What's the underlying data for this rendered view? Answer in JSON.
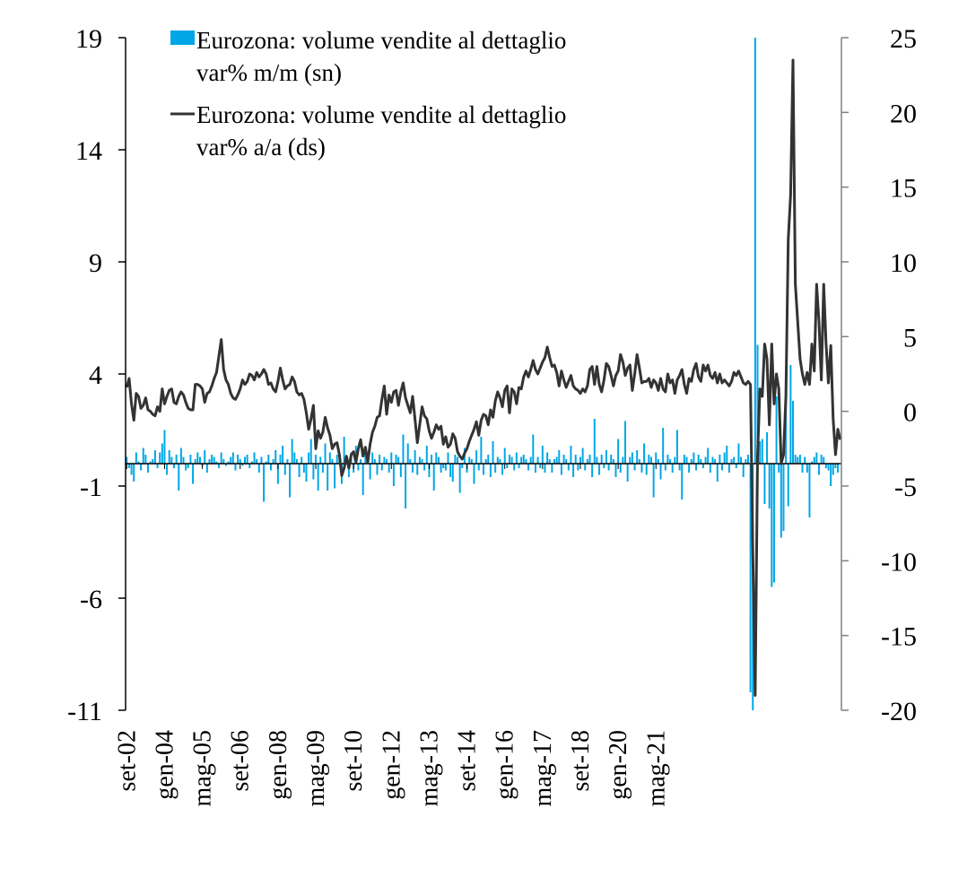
{
  "chart_data": {
    "type": "bar+line",
    "series": [
      {
        "name": "Eurozona: volume vendite al dettaglio var% m/m (sn)",
        "kind": "bar",
        "axis": "left",
        "color": "#00A6E6",
        "values": [
          0.3,
          -0.2,
          -0.5,
          -0.8,
          0.5,
          0.1,
          -0.3,
          0.7,
          0.4,
          -0.4,
          0.1,
          0.2,
          0.6,
          -0.2,
          0.5,
          0.9,
          1.5,
          -0.5,
          0.6,
          0.3,
          -0.2,
          0.4,
          -1.2,
          0.7,
          0.3,
          -0.3,
          -0.2,
          0.4,
          -0.9,
          0.2,
          0.5,
          0.3,
          -0.1,
          0.6,
          -0.4,
          0.2,
          0.4,
          0.3,
          0.1,
          -0.2,
          0.5,
          0.2,
          -0.1,
          0.1,
          0.3,
          0.5,
          -0.3,
          0.4,
          0.2,
          -0.1,
          0.3,
          0.4,
          -0.2,
          0.1,
          0.5,
          0.2,
          -0.4,
          0.3,
          -1.7,
          0.1,
          0.4,
          -0.3,
          0.2,
          0.6,
          -0.9,
          0.4,
          0.8,
          -0.5,
          0.2,
          -1.5,
          1.1,
          0.5,
          0.2,
          -0.6,
          0.3,
          -0.4,
          -0.8,
          0.5,
          1.1,
          -0.7,
          0.4,
          -1.2,
          0.3,
          -0.4,
          0.9,
          -1.2,
          0.5,
          0.2,
          -1.1,
          0.4,
          0.3,
          -0.9,
          1.2,
          0.3,
          -0.6,
          0.5,
          -0.4,
          0.8,
          -0.3,
          0.2,
          -1.4,
          0.6,
          0.3,
          -0.7,
          0.5,
          0.2,
          -0.5,
          0.4,
          -0.3,
          0.3,
          0.2,
          -0.4,
          0.5,
          -1.0,
          0.4,
          0.3,
          -0.6,
          1.3,
          -2.0,
          0.9,
          0.2,
          -0.4,
          0.6,
          -0.5,
          0.3,
          0.2,
          -0.3,
          0.8,
          -0.6,
          0.4,
          -1.2,
          0.5,
          0.3,
          -0.4,
          -0.2,
          -0.3,
          0.5,
          -0.6,
          -0.8,
          0.4,
          0.3,
          -1.3,
          -0.2,
          0.7,
          -0.4,
          0.3,
          0.2,
          -0.9,
          0.6,
          -0.3,
          1.2,
          -0.5,
          0.2,
          0.4,
          -0.6,
          1.0,
          -0.4,
          0.3,
          0.2,
          -0.5,
          0.7,
          -0.2,
          0.4,
          0.3,
          -0.3,
          0.5,
          -0.2,
          0.3,
          0.4,
          0.2,
          -0.3,
          0.3,
          1.3,
          -0.4,
          0.3,
          -0.2,
          0.8,
          -0.4,
          0.5,
          0.2,
          -0.4,
          0.2,
          0.3,
          0.6,
          -0.5,
          0.4,
          0.2,
          -0.3,
          0.8,
          -0.6,
          0.4,
          -0.3,
          0.3,
          0.7,
          -0.3,
          0.2,
          0.4,
          -0.6,
          2.0,
          0.3,
          -0.5,
          0.4,
          -0.2,
          0.6,
          -0.3,
          0.4,
          0.2,
          -0.6,
          1.1,
          -0.4,
          0.3,
          1.9,
          -0.8,
          0.3,
          0.5,
          -0.3,
          0.6,
          0.2,
          -0.4,
          0.9,
          -0.5,
          0.4,
          0.3,
          -1.5,
          0.5,
          0.2,
          -0.7,
          1.6,
          -0.3,
          0.4,
          0.2,
          -0.4,
          0.3,
          1.5,
          -0.3,
          -1.6,
          0.4,
          0.3,
          -0.4,
          0.2,
          0.5,
          -0.3,
          0.4,
          0.2,
          -0.2,
          0.3,
          0.7,
          -0.4,
          0.3,
          0.2,
          -0.8,
          0.4,
          -0.3,
          0.5,
          0.8,
          -0.4,
          0.2,
          0.3,
          -0.2,
          0.9,
          0.3,
          -0.6,
          0.2,
          0.4,
          -10.2,
          -11.0,
          19.0,
          5.3,
          1.0,
          1.1,
          -1.8,
          1.4,
          -2.0,
          -5.5,
          -5.3,
          3.0,
          -0.4,
          -3.3,
          -3.0,
          4.2,
          -1.9,
          4.4,
          2.8,
          0.4,
          0.3,
          0.4,
          -0.4,
          0.3,
          -0.4,
          -2.4,
          0.1,
          0.3,
          0.5,
          -0.5,
          0.4,
          0.3,
          -0.2,
          -0.3,
          -1.0,
          -0.5,
          -0.2,
          -0.4
        ]
      },
      {
        "name": "Eurozona: volume vendite al dettaglio var% a/a (ds)",
        "kind": "line",
        "axis": "right",
        "color": "#333333",
        "values": [
          1.6,
          2.2,
          0.5,
          -0.6,
          1.2,
          1.0,
          0.2,
          0.4,
          0.9,
          0.1,
          0.0,
          -0.2,
          -0.3,
          0.3,
          0.0,
          1.5,
          0.5,
          1.0,
          1.4,
          1.5,
          0.6,
          0.5,
          1.0,
          1.3,
          1.1,
          0.6,
          0.2,
          0.1,
          0.1,
          1.8,
          1.8,
          1.7,
          1.5,
          0.6,
          1.2,
          1.3,
          1.7,
          2.2,
          2.6,
          3.7,
          4.8,
          2.8,
          2.1,
          1.8,
          1.2,
          0.9,
          0.8,
          1.1,
          1.5,
          2.1,
          1.8,
          2.0,
          2.5,
          2.4,
          2.1,
          2.6,
          2.3,
          2.5,
          2.8,
          2.5,
          1.8,
          1.9,
          1.5,
          1.3,
          2.0,
          2.9,
          2.1,
          1.5,
          1.7,
          1.8,
          2.3,
          2.0,
          1.3,
          1.1,
          1.2,
          0.8,
          -0.1,
          -1.2,
          -0.5,
          0.4,
          -2.5,
          -1.3,
          -1.8,
          -1.4,
          -0.4,
          -1.1,
          -1.6,
          -2.5,
          -2.2,
          -2.1,
          -2.9,
          -4.3,
          -3.8,
          -3.0,
          -3.8,
          -2.9,
          -2.7,
          -3.4,
          -2.5,
          -1.9,
          -3.0,
          -2.4,
          -3.4,
          -2.2,
          -1.4,
          -1.0,
          -0.4,
          -0.3,
          0.8,
          1.7,
          -0.2,
          1.1,
          0.6,
          1.3,
          1.4,
          0.4,
          1.3,
          1.9,
          0.9,
          0.4,
          -0.1,
          1.0,
          -0.5,
          -2.1,
          -0.9,
          0.3,
          -0.3,
          -0.5,
          -1.3,
          -1.8,
          -1.4,
          -0.9,
          -1.2,
          -1.0,
          -2.2,
          -1.7,
          -2.4,
          -2.2,
          -1.5,
          -1.8,
          -2.7,
          -3.0,
          -3.2,
          -2.8,
          -2.5,
          -2.0,
          -1.6,
          -1.2,
          -0.7,
          -1.6,
          -0.6,
          -0.2,
          -0.3,
          -0.9,
          0.1,
          -0.4,
          0.7,
          1.3,
          0.9,
          0.3,
          1.4,
          1.7,
          -0.1,
          1.5,
          1.3,
          0.5,
          1.6,
          1.5,
          2.3,
          2.7,
          2.3,
          2.8,
          3.4,
          2.8,
          2.5,
          2.9,
          3.3,
          3.6,
          4.3,
          3.6,
          3.0,
          3.1,
          2.6,
          1.7,
          2.7,
          2.1,
          1.6,
          2.0,
          2.4,
          1.7,
          1.5,
          1.4,
          1.2,
          1.5,
          1.3,
          1.7,
          2.8,
          3.0,
          1.8,
          3.0,
          1.8,
          1.3,
          2.1,
          3.2,
          3.0,
          2.4,
          1.7,
          2.4,
          2.7,
          3.8,
          3.3,
          2.4,
          2.9,
          3.1,
          1.4,
          2.5,
          3.8,
          2.9,
          1.9,
          2.0,
          2.0,
          2.2,
          1.6,
          2.1,
          1.9,
          1.4,
          2.2,
          1.5,
          1.3,
          2.5,
          1.9,
          2.1,
          1.2,
          2.1,
          2.4,
          2.8,
          1.8,
          1.2,
          2.2,
          2.0,
          2.8,
          3.2,
          2.3,
          2.0,
          3.1,
          2.7,
          3.1,
          2.4,
          2.2,
          2.6,
          1.9,
          2.5,
          1.9,
          2.1,
          1.9,
          1.7,
          2.0,
          2.6,
          2.4,
          2.7,
          2.3,
          1.9,
          1.8,
          2.0,
          1.8,
          -9.5,
          -19.0,
          -3.0,
          1.5,
          1.0,
          4.5,
          3.5,
          -0.9,
          4.5,
          0.5,
          2.5,
          1.5,
          -3.5,
          -2.9,
          1.0,
          11.5,
          14.5,
          23.5,
          8.5,
          6.0,
          3.5,
          2.5,
          1.8,
          2.6,
          1.8,
          4.5,
          2.7,
          8.5,
          6.0,
          2.1,
          8.5,
          4.5,
          1.9,
          4.4,
          -0.5,
          -2.9,
          -1.2,
          -1.9
        ]
      }
    ],
    "x_tick_labels": [
      "set-02",
      "gen-04",
      "mag-05",
      "set-06",
      "gen-08",
      "mag-09",
      "set-10",
      "gen-12",
      "mag-13",
      "set-14",
      "gen-16",
      "mag-17",
      "set-18",
      "gen-20",
      "mag-21"
    ],
    "y_left": {
      "ticks": [
        "19",
        "14",
        "9",
        "4",
        "-1",
        "-6",
        "-11"
      ],
      "lim": [
        -11,
        19
      ]
    },
    "y_right": {
      "ticks": [
        "25",
        "20",
        "15",
        "10",
        "5",
        "0",
        "-5",
        "-10",
        "-15",
        "-20"
      ],
      "lim": [
        -20,
        25
      ]
    },
    "legend_placement": "top-left",
    "grid": false
  },
  "legend": {
    "bar_line1": "Eurozona: volume vendite al dettaglio",
    "bar_line2": "var% m/m (sn)",
    "line_line1": "Eurozona: volume vendite al dettaglio",
    "line_line2": "var% a/a (ds)"
  }
}
